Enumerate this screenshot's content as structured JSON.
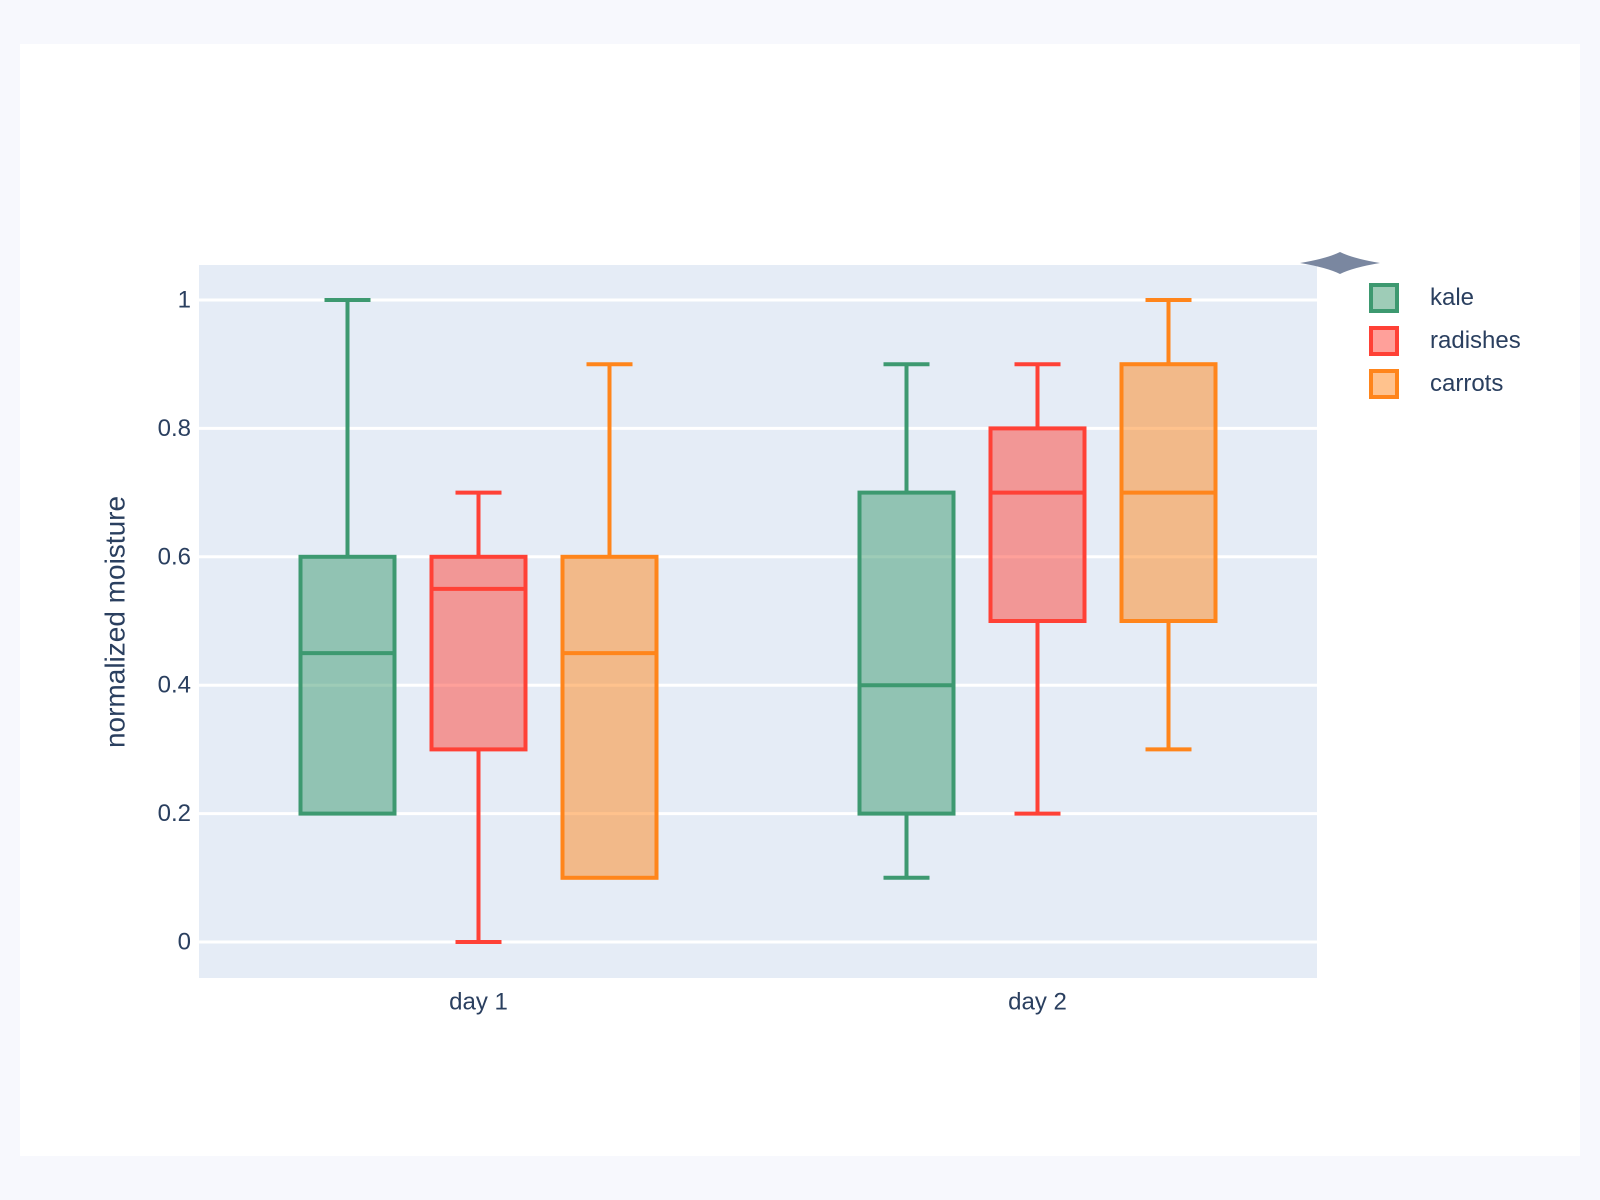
{
  "colors": {
    "page_bg": "#F7F8FD",
    "card_bg": "#FFFFFF",
    "plot_bg": "#E5ECF6",
    "grid": "#FFFFFF",
    "text": "#2A3F5F",
    "decoration": "#7A87A0"
  },
  "chart_data": {
    "type": "box",
    "boxmode": "group",
    "categories": [
      "day 1",
      "day 2"
    ],
    "xaxis": {
      "tick_labels": [
        "day 1",
        "day 2"
      ]
    },
    "yaxis": {
      "title": "normalized moisture",
      "tick_values": [
        0,
        0.2,
        0.4,
        0.6,
        0.8,
        1
      ],
      "tick_labels": [
        "0",
        "0.2",
        "0.4",
        "0.6",
        "0.8",
        "1"
      ],
      "range": [
        -0.056,
        1.055
      ],
      "grid": true
    },
    "legend": {
      "position": "top-right-outside",
      "entries": [
        "kale",
        "radishes",
        "carrots"
      ]
    },
    "series": [
      {
        "name": "kale",
        "line_color": "#3D9970",
        "fill_color": "rgba(61,153,112,0.5)",
        "x": [
          "day 1",
          "day 1",
          "day 1",
          "day 1",
          "day 1",
          "day 1",
          "day 2",
          "day 2",
          "day 2",
          "day 2",
          "day 2",
          "day 2"
        ],
        "y": [
          0.2,
          0.2,
          0.6,
          1.0,
          0.5,
          0.4,
          0.2,
          0.7,
          0.9,
          0.1,
          0.5,
          0.3
        ],
        "box_stats": [
          {
            "category": "day 1",
            "min": 0.2,
            "q1": 0.2,
            "median": 0.45,
            "q3": 0.6,
            "max": 1.0
          },
          {
            "category": "day 2",
            "min": 0.1,
            "q1": 0.2,
            "median": 0.4,
            "q3": 0.7,
            "max": 0.9
          }
        ]
      },
      {
        "name": "radishes",
        "line_color": "#FF4136",
        "fill_color": "rgba(255,65,54,0.5)",
        "x": [
          "day 1",
          "day 1",
          "day 1",
          "day 1",
          "day 1",
          "day 1",
          "day 2",
          "day 2",
          "day 2",
          "day 2",
          "day 2",
          "day 2"
        ],
        "y": [
          0.6,
          0.7,
          0.3,
          0.6,
          0.0,
          0.5,
          0.7,
          0.9,
          0.5,
          0.8,
          0.7,
          0.2
        ],
        "box_stats": [
          {
            "category": "day 1",
            "min": 0.0,
            "q1": 0.3,
            "median": 0.55,
            "q3": 0.6,
            "max": 0.7
          },
          {
            "category": "day 2",
            "min": 0.2,
            "q1": 0.5,
            "median": 0.7,
            "q3": 0.8,
            "max": 0.9
          }
        ]
      },
      {
        "name": "carrots",
        "line_color": "#FF851B",
        "fill_color": "rgba(255,133,27,0.5)",
        "x": [
          "day 1",
          "day 1",
          "day 1",
          "day 1",
          "day 1",
          "day 1",
          "day 2",
          "day 2",
          "day 2",
          "day 2",
          "day 2",
          "day 2"
        ],
        "y": [
          0.1,
          0.3,
          0.1,
          0.9,
          0.6,
          0.6,
          0.9,
          1.0,
          0.3,
          0.6,
          0.8,
          0.5
        ],
        "box_stats": [
          {
            "category": "day 1",
            "min": 0.1,
            "q1": 0.1,
            "median": 0.45,
            "q3": 0.6,
            "max": 0.9
          },
          {
            "category": "day 2",
            "min": 0.3,
            "q1": 0.5,
            "median": 0.7,
            "q3": 0.9,
            "max": 1.0
          }
        ]
      }
    ]
  }
}
